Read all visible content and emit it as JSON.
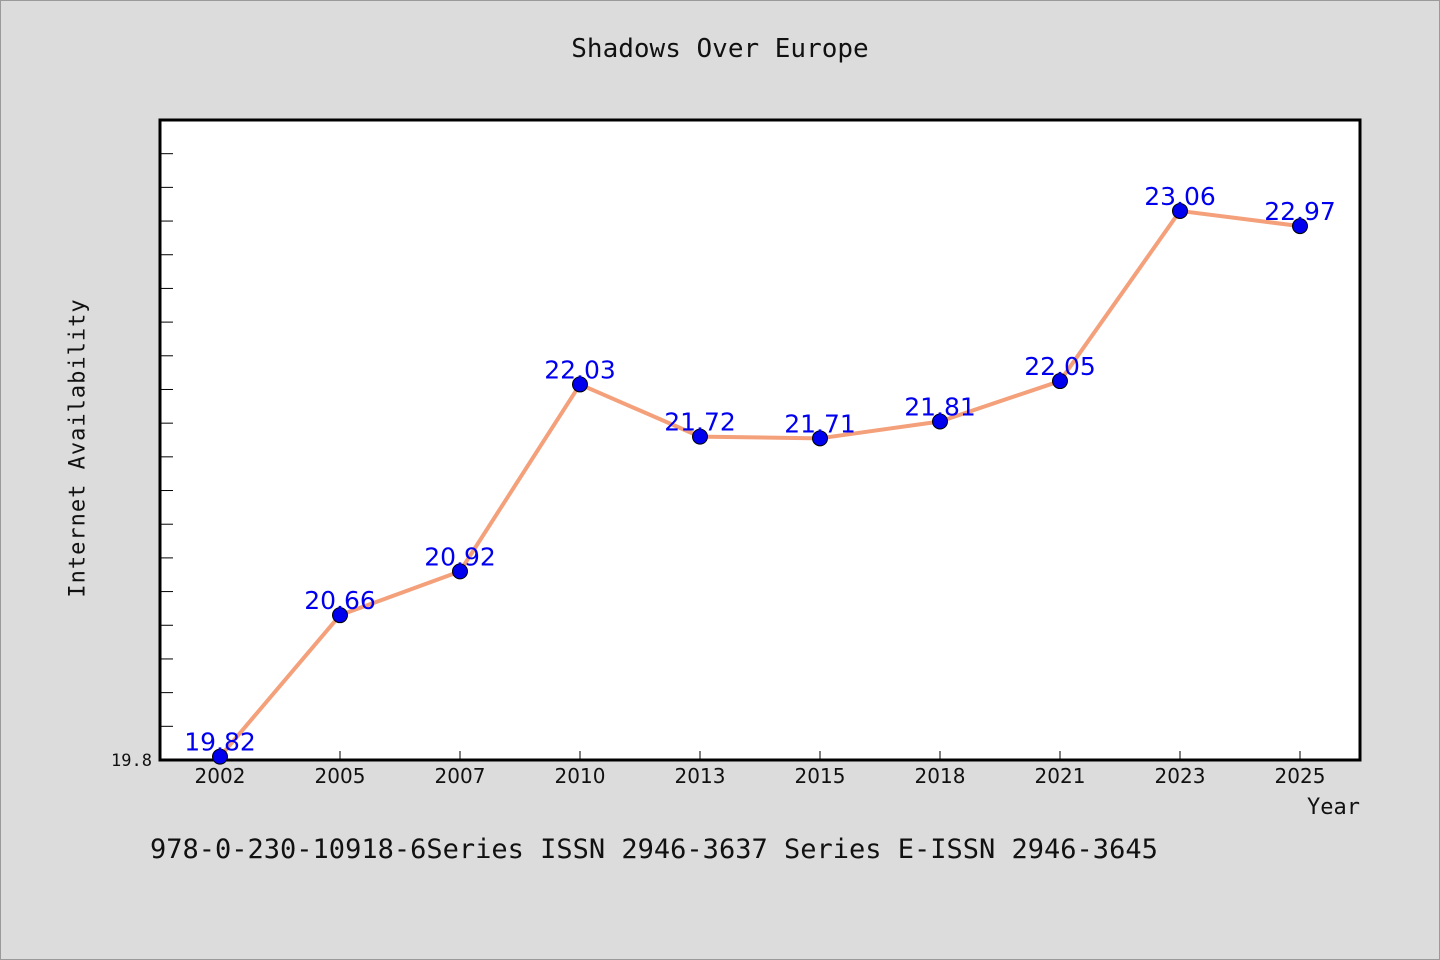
{
  "chart_data": {
    "type": "line",
    "title": "Shadows Over Europe",
    "xlabel": "Year",
    "ylabel": "Internet Availability",
    "categories": [
      "2002",
      "2005",
      "2007",
      "2010",
      "2013",
      "2015",
      "2018",
      "2021",
      "2023",
      "2025"
    ],
    "series": [
      {
        "values": [
          19.82,
          20.66,
          20.92,
          22.03,
          21.72,
          21.71,
          21.81,
          22.05,
          23.06,
          22.97
        ]
      }
    ],
    "value_labels": [
      "19.82",
      "20.66",
      "20.92",
      "22.03",
      "21.72",
      "21.71",
      "21.81",
      "22.05",
      "23.06",
      "22.97"
    ],
    "ylim": [
      19.8,
      23.6
    ],
    "y_tick_label": "19.8",
    "grid": false,
    "line_color": "#f4a07a",
    "marker_color": "#0000ee",
    "label_color": "#0000ee"
  },
  "footer": "978-0-230-10918-6Series ISSN 2946-3637 Series E-ISSN 2946-3645"
}
